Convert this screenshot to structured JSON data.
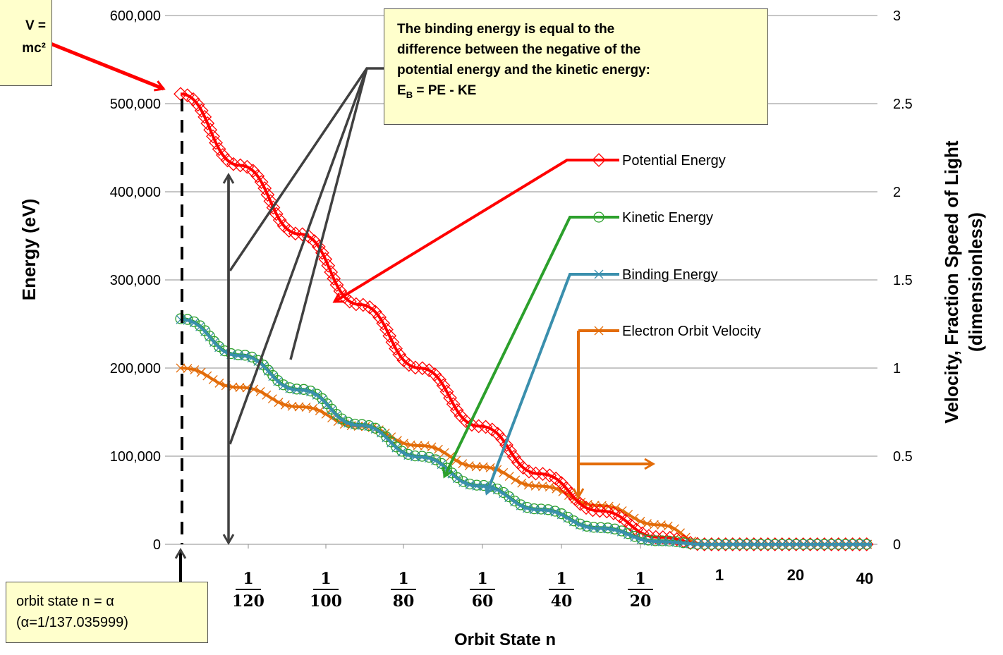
{
  "chart_data": {
    "type": "line",
    "xlabel": "Orbit State n",
    "ylabel_left": "Energy  (eV)",
    "ylabel_right_line1": "Velocity, Fraction Speed of Light",
    "ylabel_right_line2": "(dimensionless)",
    "ylim_left": [
      0,
      600000
    ],
    "ylim_right": [
      0,
      3
    ],
    "left_ticks": [
      "0",
      "100,000",
      "200,000",
      "300,000",
      "400,000",
      "500,000",
      "600,000"
    ],
    "right_ticks": [
      "0",
      "0.5",
      "1",
      "1.5",
      "2",
      "2.5",
      "3"
    ],
    "x_tick_fractions": [
      {
        "num": "1",
        "den": "120"
      },
      {
        "num": "1",
        "den": "100"
      },
      {
        "num": "1",
        "den": "80"
      },
      {
        "num": "1",
        "den": "60"
      },
      {
        "num": "1",
        "den": "40"
      },
      {
        "num": "1",
        "den": "20"
      }
    ],
    "x_tick_integers": [
      "1",
      "20",
      "40"
    ],
    "grid": true,
    "legend_position": "inside-right",
    "series": [
      {
        "name": "Potential Energy",
        "color": "#ff0000",
        "marker": "diamond",
        "axis": "left",
        "y": [
          511000,
          430000,
          352000,
          272000,
          200000,
          134000,
          80000,
          38000,
          8000,
          0,
          0,
          0,
          0,
          0,
          0
        ]
      },
      {
        "name": "Kinetic Energy",
        "color": "#2ca02c",
        "marker": "circle",
        "axis": "left",
        "y": [
          256000,
          215000,
          176000,
          136000,
          100000,
          67000,
          40000,
          19000,
          4000,
          0,
          0,
          0,
          0,
          0,
          0
        ]
      },
      {
        "name": "Binding Energy",
        "color": "#3a8fad",
        "marker": "x",
        "axis": "left",
        "y": [
          255000,
          214000,
          175000,
          135000,
          99000,
          66000,
          39000,
          18000,
          3000,
          0,
          0,
          0,
          0,
          0,
          0
        ]
      },
      {
        "name": "Electron Orbit Velocity",
        "color": "#e36c09",
        "marker": "x",
        "axis": "right",
        "y": [
          1.0,
          0.89,
          0.78,
          0.67,
          0.56,
          0.44,
          0.33,
          0.22,
          0.11,
          0.0,
          0.0,
          0.0,
          0.0,
          0.0,
          0.0
        ]
      }
    ]
  },
  "notes": {
    "binding_line1": "The binding energy  is equal to the",
    "binding_line2": "difference between the negative of the",
    "binding_line3": "potential energy and the kinetic energy:",
    "binding_formula_lhs": "E",
    "binding_formula_sub": "B",
    "binding_formula_rhs": " = PE - KE",
    "mass_line1": "V =",
    "mass_line2": "mc²",
    "orbit_line1": "orbit state n = α",
    "orbit_line2": "(α=1/137.035999)"
  },
  "colors": {
    "potential": "#ff0000",
    "kinetic": "#2ca02c",
    "binding": "#3a8fad",
    "velocity": "#e36c09",
    "annotation": "#404040",
    "note_bg": "#ffffcc"
  }
}
